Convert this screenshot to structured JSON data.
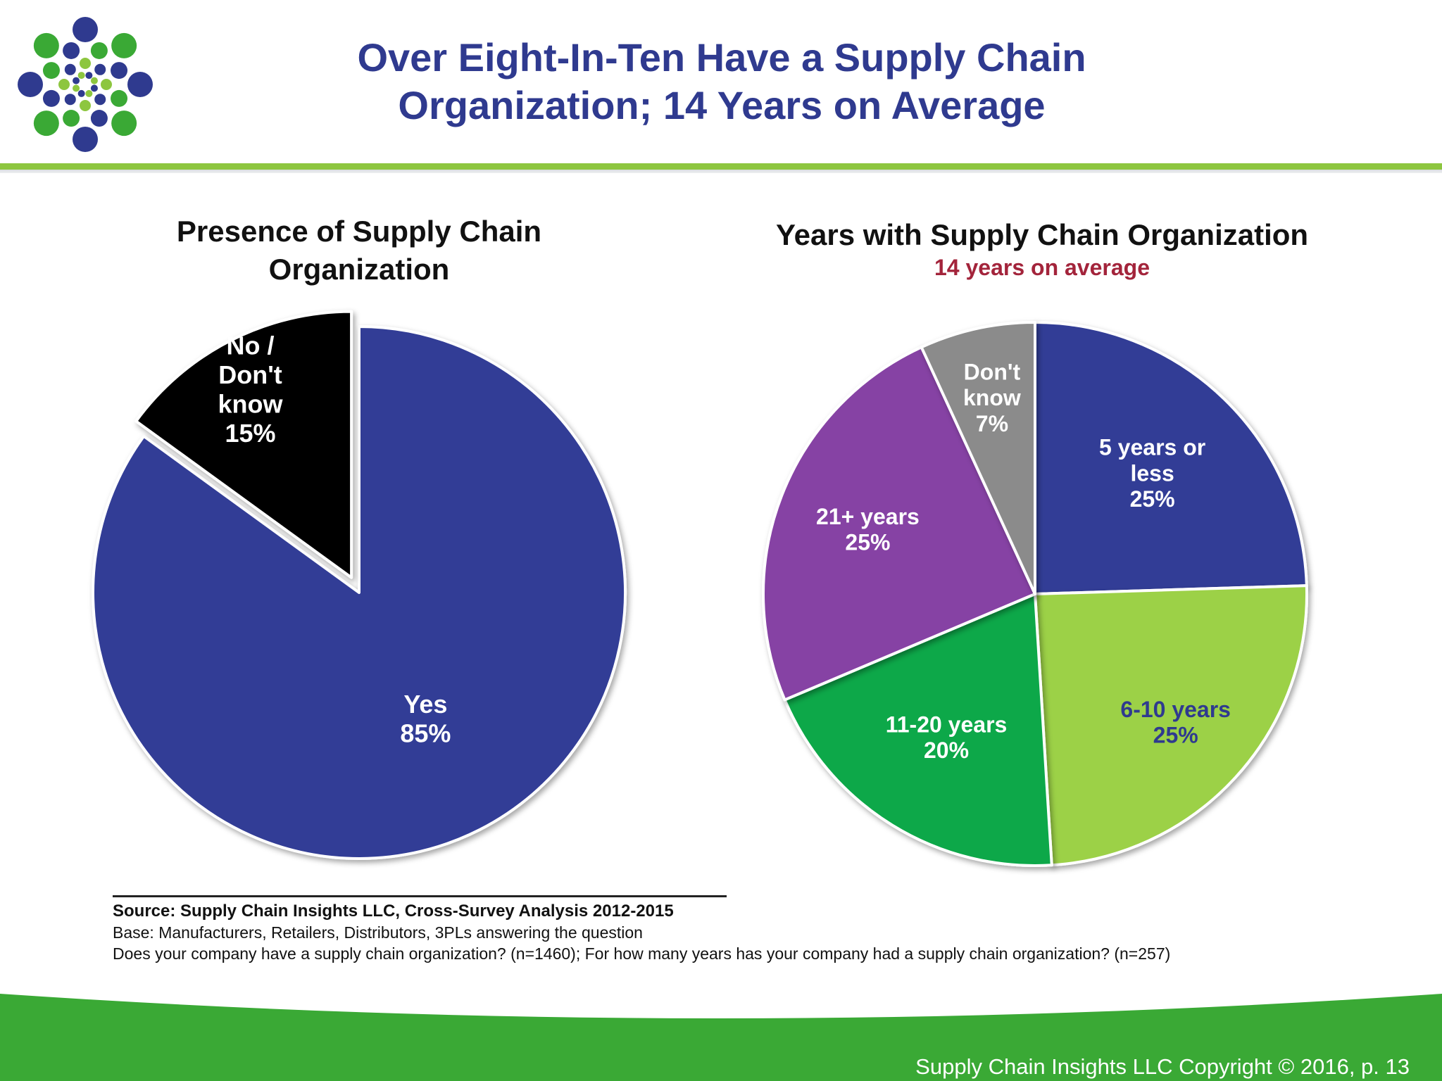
{
  "slide": {
    "title_line1": "Over Eight-In-Ten Have a Supply Chain",
    "title_line2": "Organization; 14 Years on Average"
  },
  "colors": {
    "brand_blue": "#2f3a8f",
    "brand_green": "#8dc63f",
    "footer_green": "#3aa935",
    "subtitle_red": "#a3243b"
  },
  "chart_data": [
    {
      "type": "pie",
      "title_line1": "Presence of Supply Chain",
      "title_line2": "Organization",
      "slices": [
        {
          "label_lines": [
            "Yes",
            "85%"
          ],
          "value": 85,
          "color": "#333e96",
          "label_color": "#ffffff"
        },
        {
          "label_lines": [
            "No /",
            "Don't",
            "know",
            "15%"
          ],
          "value": 15,
          "color": "#000000",
          "label_color": "#ffffff",
          "exploded": true
        }
      ]
    },
    {
      "type": "pie",
      "title": "Years with Supply Chain Organization",
      "subtitle": "14 years on average",
      "slices": [
        {
          "label_lines": [
            "5 years or",
            "less",
            "25%"
          ],
          "value": 25,
          "color": "#333e96",
          "label_color": "#ffffff"
        },
        {
          "label_lines": [
            "6-10 years",
            "25%"
          ],
          "value": 25,
          "color": "#9cd146",
          "label_color": "#2f3a8f"
        },
        {
          "label_lines": [
            "11-20 years",
            "20%"
          ],
          "value": 20,
          "color": "#0ba84a",
          "label_color": "#ffffff"
        },
        {
          "label_lines": [
            "21+ years",
            "25%"
          ],
          "value": 25,
          "color": "#8642a4",
          "label_color": "#ffffff"
        },
        {
          "label_lines": [
            "Don't",
            "know",
            "7%"
          ],
          "value": 7,
          "color": "#8b8b8b",
          "label_color": "#ffffff"
        }
      ]
    }
  ],
  "source": {
    "source_line": "Source:  Supply Chain Insights LLC, Cross-Survey Analysis 2012-2015",
    "base_line": "Base:  Manufacturers,  Retailers, Distributors, 3PLs answering the question",
    "question_line": "Does your company have a supply chain organization? (n=1460); For how many years has your company had a supply chain organization? (n=257)"
  },
  "footer": {
    "copyright": "Supply Chain Insights LLC Copyright © 2016, p. 13"
  }
}
